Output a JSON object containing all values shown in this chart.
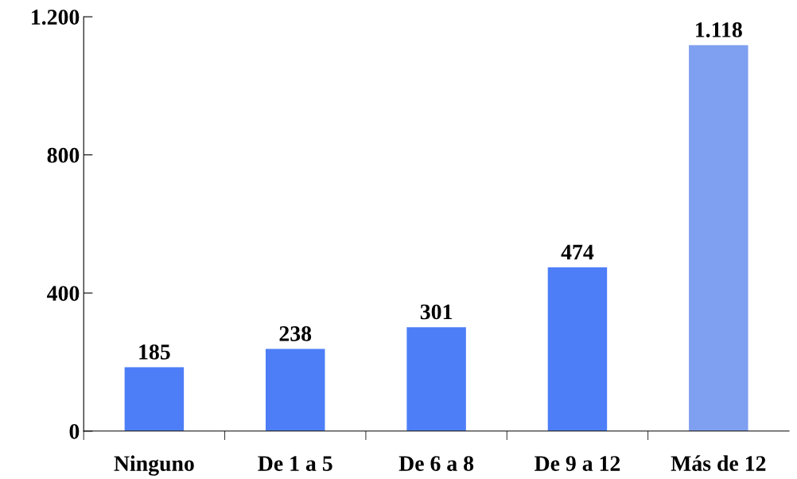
{
  "chart_data": {
    "type": "bar",
    "categories": [
      "Ninguno",
      "De 1 a 5",
      "De 6 a 8",
      "De 9 a 12",
      "Más de 12"
    ],
    "values": [
      185,
      238,
      301,
      474,
      1118
    ],
    "colors": [
      "#4d7ef8",
      "#4d7ef8",
      "#4d7ef8",
      "#4d7ef8",
      "#7f9ff0"
    ],
    "value_labels": [
      "185",
      "238",
      "301",
      "474",
      "1.118"
    ],
    "ylim": [
      0,
      1200
    ],
    "yticks": [
      0,
      400,
      800,
      {
        "value": 1200,
        "label": "1.200"
      }
    ],
    "grid": false,
    "legend": false
  }
}
